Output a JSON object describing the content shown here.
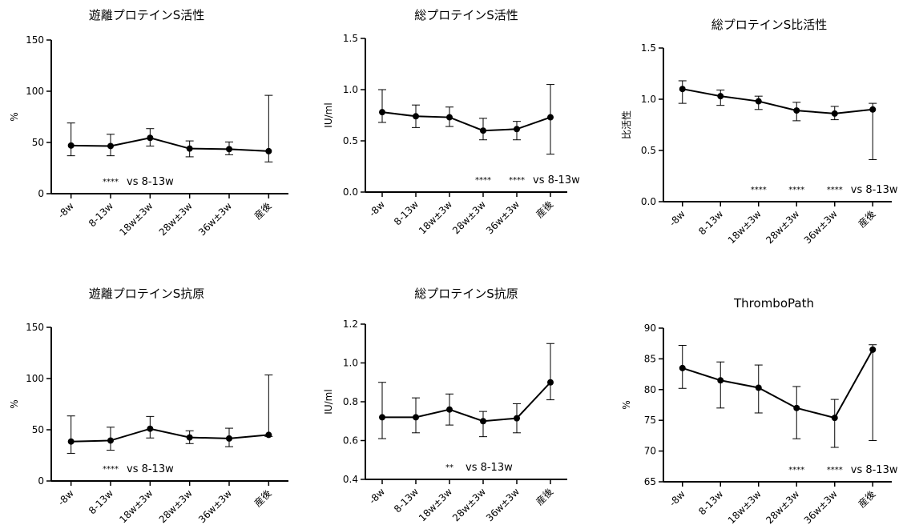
{
  "chart_data": [
    {
      "type": "line",
      "title": "遊離プロテインS活性",
      "ylabel": "%",
      "categories": [
        "-8w",
        "8-13w",
        "18w±3w",
        "28w±3w",
        "36w±3w",
        "産後"
      ],
      "ylim": [
        0,
        150
      ],
      "yticks": [
        "0",
        "50",
        "100",
        "150"
      ],
      "values": [
        47,
        46.5,
        54.5,
        44,
        43.5,
        41.5
      ],
      "err_low": [
        37,
        37,
        46.5,
        36,
        38,
        31
      ],
      "err_high": [
        69,
        58,
        63.5,
        51.5,
        50.5,
        96
      ],
      "stars": [
        {
          "category": "8-13w",
          "text": "****"
        }
      ],
      "annotation": "vs 8-13w"
    },
    {
      "type": "line",
      "title": "総プロテインS活性",
      "ylabel": "IU/ml",
      "categories": [
        "-8w",
        "8-13w",
        "18w±3w",
        "28w±3w",
        "36w±3w",
        "産後"
      ],
      "ylim": [
        0,
        1.5
      ],
      "yticks": [
        "0.0",
        "0.5",
        "1.0",
        "1.5"
      ],
      "values": [
        0.78,
        0.74,
        0.73,
        0.6,
        0.615,
        0.73
      ],
      "err_low": [
        0.68,
        0.63,
        0.64,
        0.51,
        0.51,
        0.37
      ],
      "err_high": [
        1.0,
        0.85,
        0.83,
        0.72,
        0.69,
        1.05
      ],
      "stars": [
        {
          "category": "28w±3w",
          "text": "****"
        },
        {
          "category": "36w±3w",
          "text": "****"
        }
      ],
      "annotation": "vs 8-13w"
    },
    {
      "type": "line",
      "title": "総プロテインS比活性",
      "ylabel": "比活性",
      "categories": [
        "-8w",
        "8-13w",
        "18w±3w",
        "28w±3w",
        "36w±3w",
        "産後"
      ],
      "ylim": [
        0,
        1.5
      ],
      "yticks": [
        "0.0",
        "0.5",
        "1.0",
        "1.5"
      ],
      "values": [
        1.1,
        1.03,
        0.98,
        0.89,
        0.86,
        0.9
      ],
      "err_low": [
        0.96,
        0.94,
        0.9,
        0.79,
        0.8,
        0.41
      ],
      "err_high": [
        1.18,
        1.09,
        1.03,
        0.97,
        0.93,
        0.96
      ],
      "stars": [
        {
          "category": "18w±3w",
          "text": "****"
        },
        {
          "category": "28w±3w",
          "text": "****"
        },
        {
          "category": "36w±3w",
          "text": "****"
        }
      ],
      "annotation": "vs 8-13w"
    },
    {
      "type": "line",
      "title": "遊離プロテインS抗原",
      "ylabel": "%",
      "categories": [
        "-8w",
        "8-13w",
        "18w±3w",
        "28w±3w",
        "36w±3w",
        "産後"
      ],
      "ylim": [
        0,
        150
      ],
      "yticks": [
        "0",
        "50",
        "100",
        "150"
      ],
      "values": [
        38.5,
        39.5,
        51,
        42.5,
        41.5,
        45
      ],
      "err_low": [
        27,
        30,
        42,
        36.5,
        33.5,
        43.5
      ],
      "err_high": [
        63.5,
        52.5,
        63,
        49,
        51.5,
        103.5
      ],
      "stars": [
        {
          "category": "8-13w",
          "text": "****"
        }
      ],
      "annotation": "vs 8-13w"
    },
    {
      "type": "line",
      "title": "総プロテインS抗原",
      "ylabel": "IU/ml",
      "categories": [
        "-8w",
        "8-13w",
        "18w±3w",
        "28w±3w",
        "36w±3w",
        "産後"
      ],
      "ylim": [
        0.4,
        1.2
      ],
      "yticks": [
        "0.4",
        "0.6",
        "0.8",
        "1.0",
        "1.2"
      ],
      "values": [
        0.72,
        0.72,
        0.76,
        0.7,
        0.715,
        0.9
      ],
      "err_low": [
        0.61,
        0.64,
        0.68,
        0.62,
        0.64,
        0.81
      ],
      "err_high": [
        0.9,
        0.82,
        0.84,
        0.75,
        0.79,
        1.1
      ],
      "stars": [
        {
          "category": "18w±3w",
          "text": "**"
        }
      ],
      "annotation": "vs 8-13w"
    },
    {
      "type": "line",
      "title": "ThromboPath",
      "ylabel": "%",
      "categories": [
        "-8w",
        "8-13w",
        "18w±3w",
        "28w±3w",
        "36w±3w",
        "産後"
      ],
      "ylim": [
        65,
        90
      ],
      "yticks": [
        "65",
        "70",
        "75",
        "80",
        "85",
        "90"
      ],
      "values": [
        83.5,
        81.5,
        80.3,
        77,
        75.4,
        86.5
      ],
      "err_low": [
        80.2,
        77,
        76.2,
        72,
        70.6,
        71.7
      ],
      "err_high": [
        87.2,
        84.5,
        84,
        80.5,
        78.4,
        87.3
      ],
      "stars": [
        {
          "category": "28w±3w",
          "text": "****"
        },
        {
          "category": "36w±3w",
          "text": "****"
        }
      ],
      "annotation": "vs 8-13w"
    }
  ]
}
